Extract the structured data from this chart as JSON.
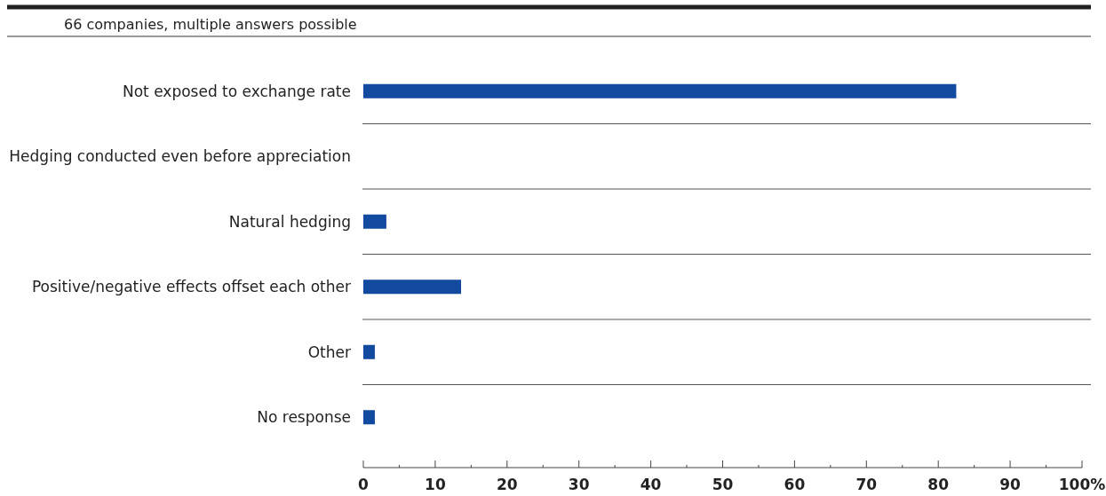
{
  "chart_data": {
    "type": "bar",
    "orientation": "horizontal",
    "subtitle": "66 companies, multiple answers possible",
    "categories": [
      "Not exposed to exchange rate",
      "Hedging conducted even before appreciation",
      "Natural hedging",
      "Positive/negative effects offset each other",
      "Other",
      "No response"
    ],
    "values": [
      82.5,
      0,
      3.2,
      13.6,
      1.6,
      1.6
    ],
    "color": "#114a9f",
    "xlim": [
      0,
      100
    ],
    "xticks": [
      0,
      {
        "value": 5,
        "label": null
      },
      10,
      {
        "value": 15,
        "label": null
      },
      20,
      {
        "value": 25,
        "label": null
      },
      30,
      {
        "value": 35,
        "label": null
      },
      40,
      {
        "value": 45,
        "label": null
      },
      50,
      {
        "value": 55,
        "label": null
      },
      60,
      {
        "value": 65,
        "label": null
      },
      70,
      {
        "value": 75,
        "label": null
      },
      80,
      {
        "value": 85,
        "label": null
      },
      90,
      {
        "value": 95,
        "label": null
      },
      {
        "value": 100,
        "label": "100%"
      }
    ]
  }
}
